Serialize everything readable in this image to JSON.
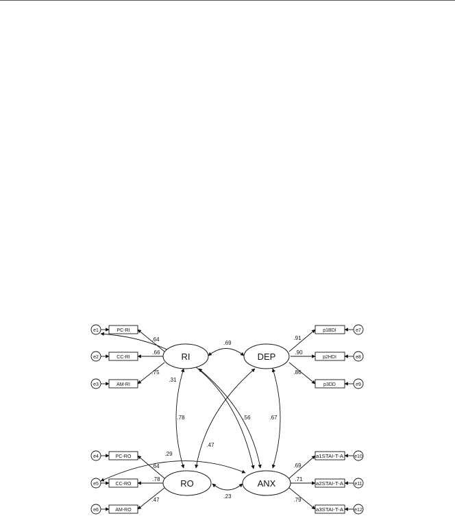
{
  "latents": {
    "ri": "RI",
    "dep": "DEP",
    "ro": "RO",
    "anx": "ANX"
  },
  "errors": {
    "e1": "e1",
    "e2": "e2",
    "e3": "e3",
    "e4": "e4",
    "e5": "e5",
    "e6": "e6",
    "e7": "e7",
    "e8": "e8",
    "e9": "e9",
    "e10": "e10",
    "e11": "e11",
    "e12": "e12"
  },
  "indicators": {
    "pc_ri": "PC-RI",
    "cc_ri": "CC-RI",
    "am_ri": "AM-RI",
    "pc_ro": "PC-RO",
    "cc_ro": "CC-RO",
    "am_ro": "AM-RO",
    "p1bdi": "p1BDI",
    "p2hdi": "p2HDI",
    "p3dd": "p3DD",
    "a1stai": "a1STAI-T-A",
    "a2stai": "a2STAI-T-A",
    "a3stai": "a3STAI-T-A"
  },
  "loadings": {
    "pc_ri": ".64",
    "cc_ri": ".66",
    "am_ri": ".75",
    "pc_ro": ".64",
    "cc_ro": ".78",
    "am_ro": ".47",
    "p1bdi": ".91",
    "p2hdi": ".90",
    "p3dd": ".86",
    "a1stai": ".69",
    "a2stai": ".71",
    "a3stai": ".79"
  },
  "correlations": {
    "ri_dep": ".69",
    "ri_ro": ".78",
    "ri_anx": ".56",
    "dep_ro": ".47",
    "dep_anx": ".67",
    "ro_anx": ".23",
    "e1_anx": ".31",
    "e5_anx": ".29"
  },
  "colors": {
    "stroke": "#111111",
    "background": "#ffffff"
  }
}
